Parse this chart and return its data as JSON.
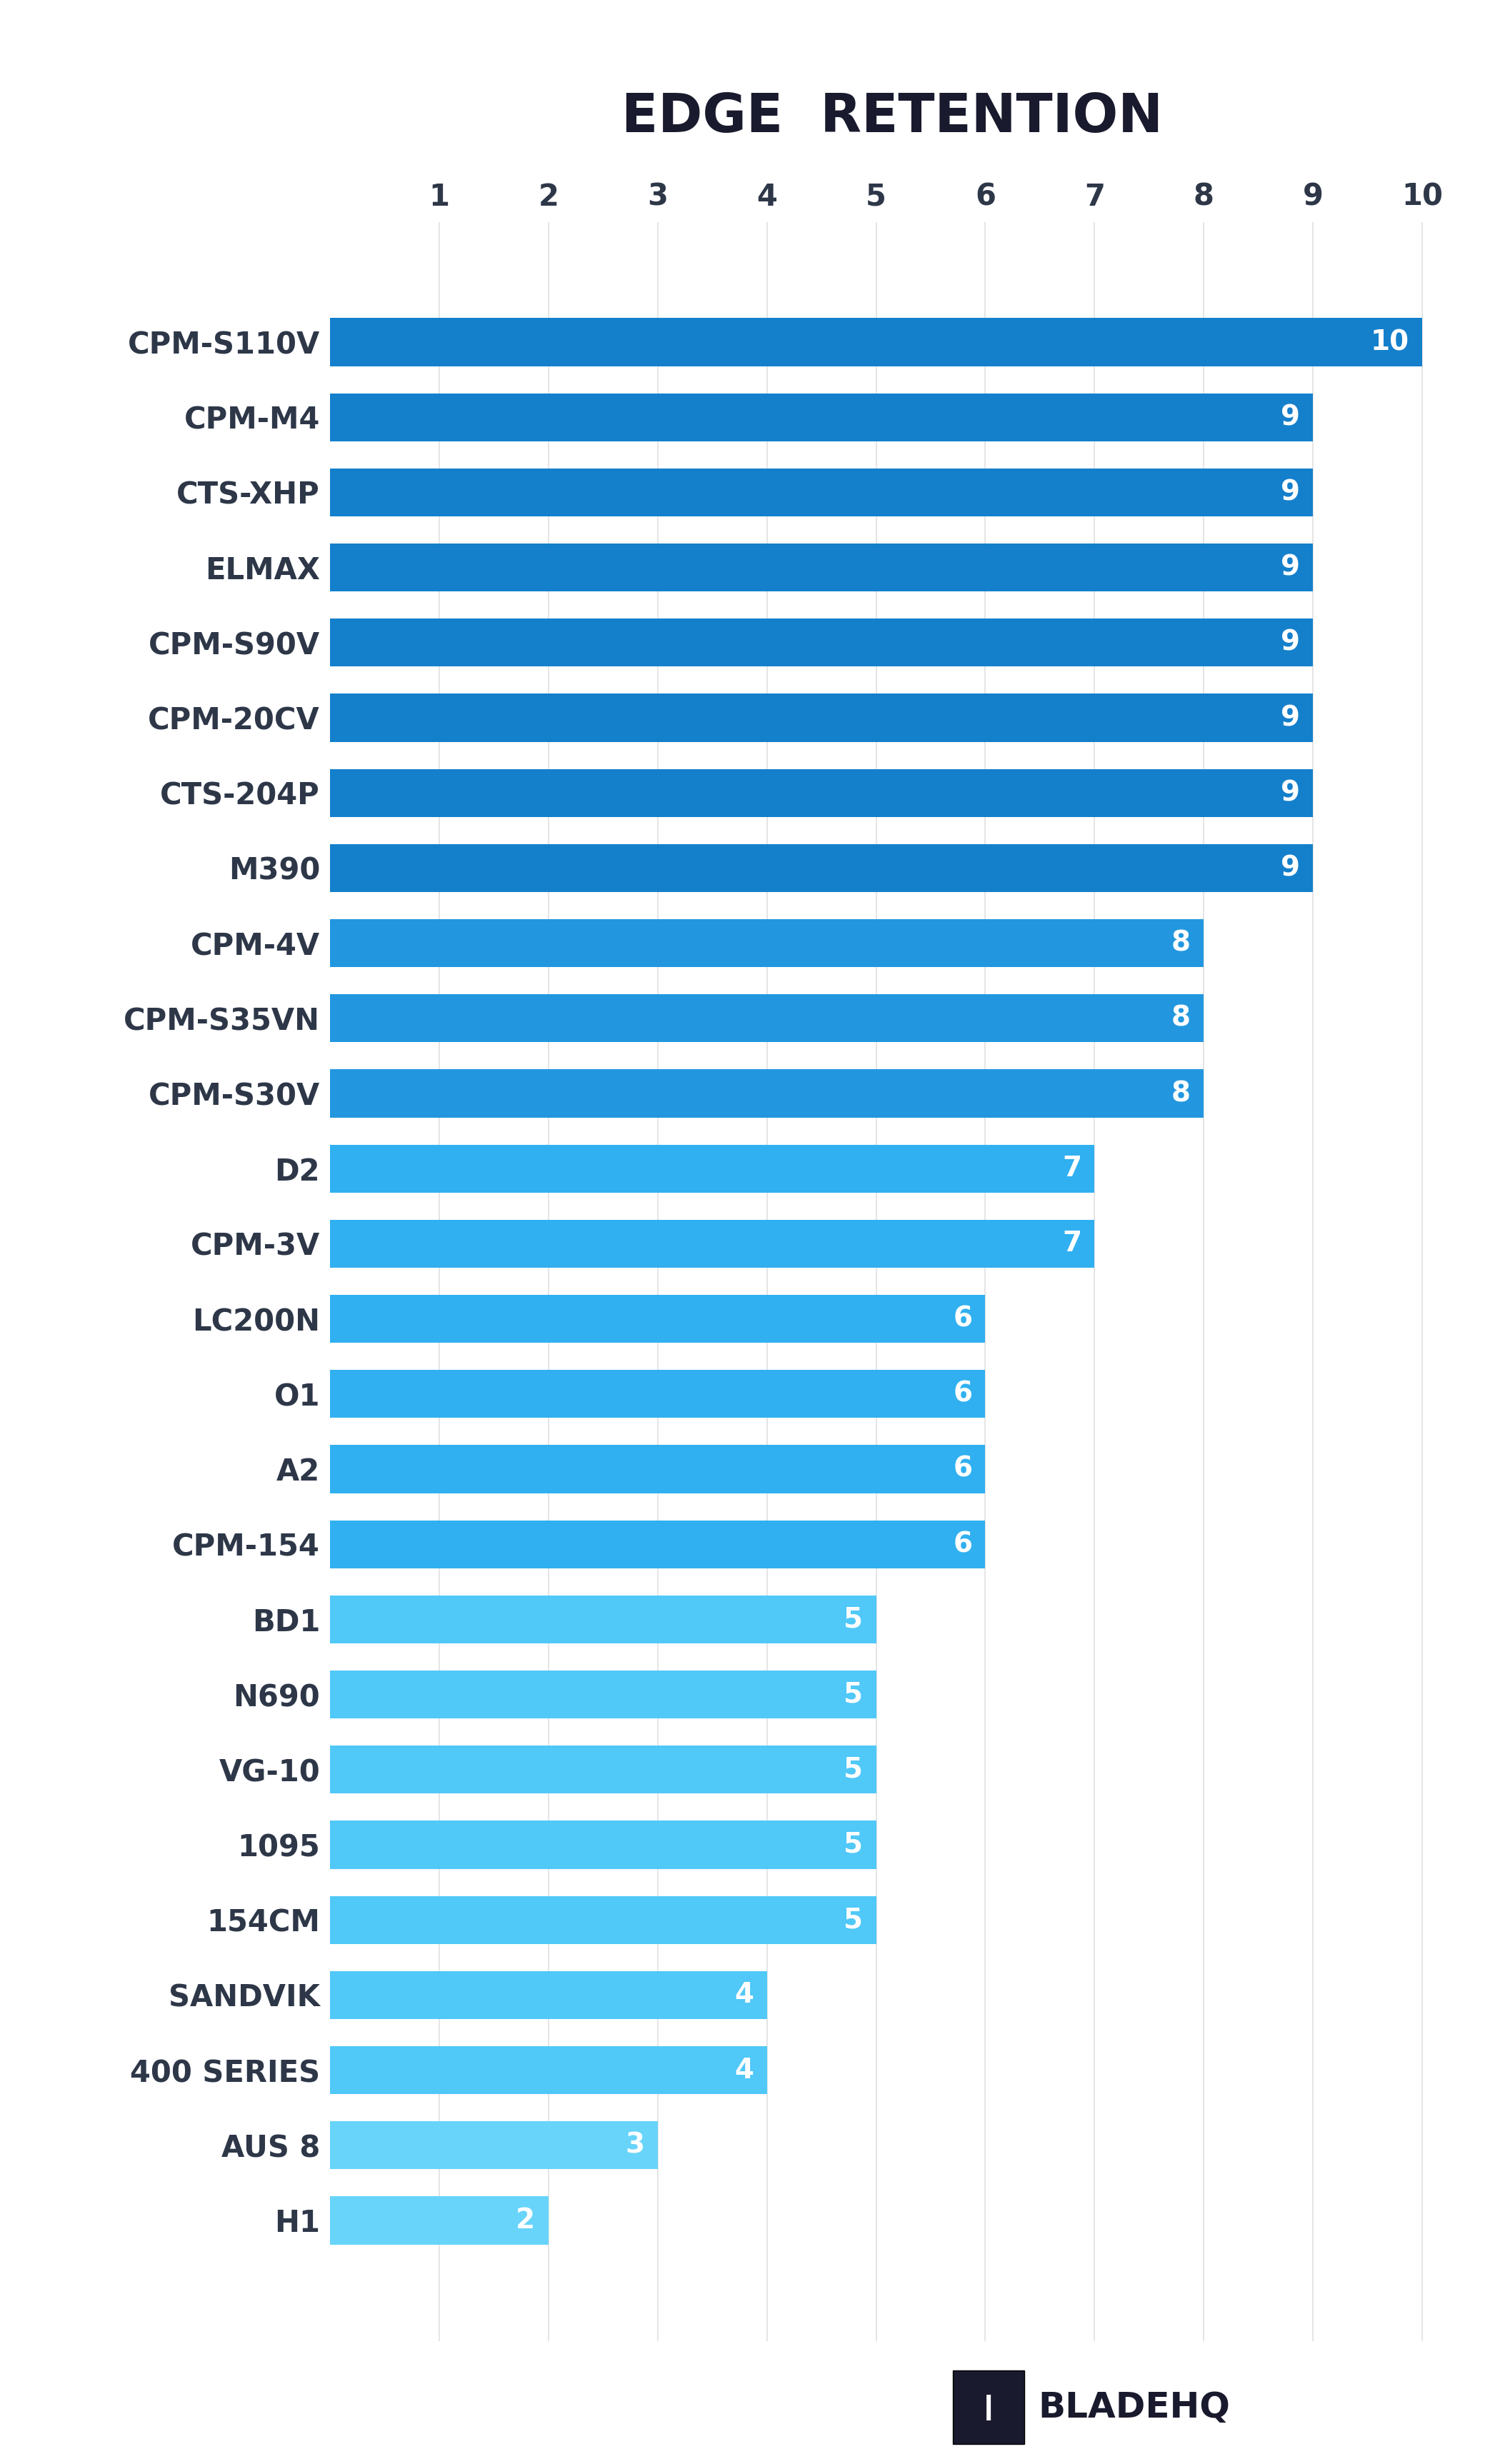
{
  "title": "EDGE  RETENTION",
  "categories": [
    "CPM-S110V",
    "CPM-M4",
    "CTS-XHP",
    "ELMAX",
    "CPM-S90V",
    "CPM-20CV",
    "CTS-204P",
    "M390",
    "CPM-4V",
    "CPM-S35VN",
    "CPM-S30V",
    "D2",
    "CPM-3V",
    "LC200N",
    "O1",
    "A2",
    "CPM-154",
    "BD1",
    "N690",
    "VG-10",
    "1095",
    "154CM",
    "SANDVIK",
    "400 SERIES",
    "AUS 8",
    "H1"
  ],
  "values": [
    10,
    9,
    9,
    9,
    9,
    9,
    9,
    9,
    8,
    8,
    8,
    7,
    7,
    6,
    6,
    6,
    6,
    5,
    5,
    5,
    5,
    5,
    4,
    4,
    3,
    2
  ],
  "bar_colors": [
    "#1480cc",
    "#1480cc",
    "#1480cc",
    "#1480cc",
    "#1480cc",
    "#1480cc",
    "#1480cc",
    "#1480cc",
    "#2297e0",
    "#2297e0",
    "#2297e0",
    "#30b0f0",
    "#30b0f0",
    "#30b0f0",
    "#30b0f0",
    "#30b0f0",
    "#30b0f0",
    "#50c8f8",
    "#50c8f8",
    "#50c8f8",
    "#50c8f8",
    "#50c8f8",
    "#50c8f8",
    "#50c8f8",
    "#68d4fa",
    "#68d4fa"
  ],
  "xlim_max": 10,
  "xticks": [
    1,
    2,
    3,
    4,
    5,
    6,
    7,
    8,
    9,
    10
  ],
  "xtick_labels": [
    "1",
    "2",
    "3",
    "4",
    "5",
    "6",
    "7",
    "8",
    "9",
    "10"
  ],
  "background_color": "#ffffff",
  "title_color": "#1a1a2e",
  "label_color": "#2d3748",
  "value_text_color": "#ffffff",
  "grid_color": "#e0e0e0",
  "title_fontsize": 54,
  "label_fontsize": 30,
  "value_fontsize": 28,
  "tick_fontsize": 30,
  "bar_height": 0.64,
  "blade_hq_text": "BLADEHQ",
  "blade_hq_fontsize": 36
}
